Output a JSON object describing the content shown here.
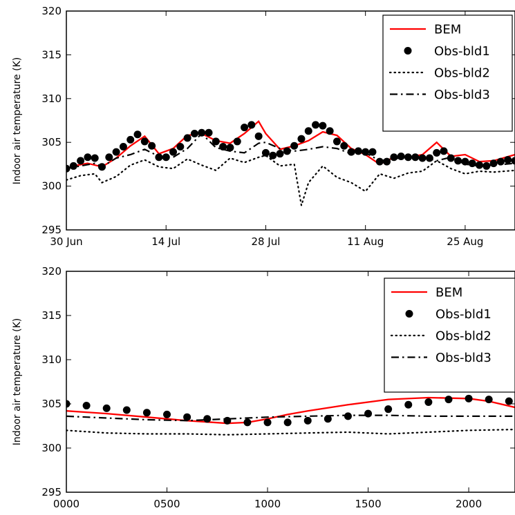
{
  "chart_data": [
    {
      "type": "line",
      "ylabel": "Indoor air temperature (K)",
      "xlabel": "",
      "ylim": [
        295,
        320
      ],
      "xlim": [
        "2012-06-30",
        "2012-09-01"
      ],
      "yticks": [
        "295",
        "300",
        "305",
        "310",
        "315",
        "320"
      ],
      "xtick_labels": [
        {
          "label": "30 Jun",
          "date": "2012-06-30"
        },
        {
          "label": "14 Jul",
          "date": "2012-07-14"
        },
        {
          "label": "28 Jul",
          "date": "2012-07-28"
        },
        {
          "label": "11 Aug",
          "date": "2012-08-11"
        },
        {
          "label": "25 Aug",
          "date": "2012-08-25"
        }
      ],
      "legend_position": "top-right",
      "series": [
        {
          "name": "BEM",
          "style": "solid",
          "color": "#ff0000",
          "x": [
            "2012-06-30",
            "2012-07-01",
            "2012-07-03",
            "2012-07-05",
            "2012-07-07",
            "2012-07-09",
            "2012-07-11",
            "2012-07-13",
            "2012-07-15",
            "2012-07-17",
            "2012-07-19",
            "2012-07-21",
            "2012-07-23",
            "2012-07-25",
            "2012-07-27",
            "2012-07-28",
            "2012-07-30",
            "2012-08-01",
            "2012-08-03",
            "2012-08-05",
            "2012-08-07",
            "2012-08-09",
            "2012-08-11",
            "2012-08-13",
            "2012-08-15",
            "2012-08-17",
            "2012-08-19",
            "2012-08-21",
            "2012-08-23",
            "2012-08-25",
            "2012-08-27",
            "2012-08-29",
            "2012-09-01"
          ],
          "y": [
            301.9,
            302.3,
            302.6,
            302.2,
            303.2,
            304.6,
            305.7,
            303.7,
            304.3,
            305.8,
            306.0,
            305.2,
            304.9,
            306.0,
            307.4,
            306.0,
            304.2,
            304.6,
            305.2,
            306.2,
            305.8,
            304.3,
            303.6,
            302.5,
            303.3,
            303.3,
            303.6,
            305.0,
            303.4,
            303.6,
            302.8,
            302.9,
            303.6
          ]
        },
        {
          "name": "Obs-bld1",
          "style": "markers",
          "color": "#000000",
          "x": [
            "2012-06-30",
            "2012-07-01",
            "2012-07-02",
            "2012-07-03",
            "2012-07-04",
            "2012-07-05",
            "2012-07-06",
            "2012-07-07",
            "2012-07-08",
            "2012-07-09",
            "2012-07-10",
            "2012-07-11",
            "2012-07-12",
            "2012-07-13",
            "2012-07-14",
            "2012-07-15",
            "2012-07-16",
            "2012-07-17",
            "2012-07-18",
            "2012-07-19",
            "2012-07-20",
            "2012-07-21",
            "2012-07-22",
            "2012-07-23",
            "2012-07-24",
            "2012-07-25",
            "2012-07-26",
            "2012-07-27",
            "2012-07-28",
            "2012-07-29",
            "2012-07-30",
            "2012-07-31",
            "2012-08-01",
            "2012-08-02",
            "2012-08-03",
            "2012-08-04",
            "2012-08-05",
            "2012-08-06",
            "2012-08-07",
            "2012-08-08",
            "2012-08-09",
            "2012-08-10",
            "2012-08-11",
            "2012-08-12",
            "2012-08-13",
            "2012-08-14",
            "2012-08-15",
            "2012-08-16",
            "2012-08-17",
            "2012-08-18",
            "2012-08-19",
            "2012-08-20",
            "2012-08-21",
            "2012-08-22",
            "2012-08-23",
            "2012-08-24",
            "2012-08-25",
            "2012-08-26",
            "2012-08-27",
            "2012-08-28",
            "2012-08-29",
            "2012-08-30",
            "2012-08-31",
            "2012-09-01"
          ],
          "y": [
            302.0,
            302.3,
            302.9,
            303.3,
            303.2,
            302.2,
            303.3,
            303.9,
            304.5,
            305.3,
            305.9,
            305.1,
            304.6,
            303.3,
            303.3,
            303.9,
            304.5,
            305.5,
            306.0,
            306.1,
            306.1,
            305.1,
            304.5,
            304.4,
            305.1,
            306.7,
            307.0,
            305.7,
            303.8,
            303.5,
            303.7,
            304.0,
            304.6,
            305.4,
            306.3,
            307.0,
            306.9,
            306.3,
            305.1,
            304.6,
            303.9,
            304.0,
            303.9,
            303.9,
            302.8,
            302.8,
            303.3,
            303.4,
            303.3,
            303.3,
            303.2,
            303.2,
            303.8,
            304.0,
            303.2,
            302.9,
            302.8,
            302.6,
            302.4,
            302.3,
            302.6,
            302.8,
            303.0,
            302.9
          ]
        },
        {
          "name": "Obs-bld2",
          "style": "dotted",
          "color": "#000000",
          "x": [
            "2012-06-30",
            "2012-07-02",
            "2012-07-04",
            "2012-07-05",
            "2012-07-07",
            "2012-07-09",
            "2012-07-11",
            "2012-07-13",
            "2012-07-15",
            "2012-07-17",
            "2012-07-19",
            "2012-07-21",
            "2012-07-23",
            "2012-07-25",
            "2012-07-27",
            "2012-07-28",
            "2012-07-30",
            "2012-08-01",
            "2012-08-02",
            "2012-08-03",
            "2012-08-05",
            "2012-08-07",
            "2012-08-09",
            "2012-08-11",
            "2012-08-13",
            "2012-08-15",
            "2012-08-17",
            "2012-08-19",
            "2012-08-21",
            "2012-08-23",
            "2012-08-25",
            "2012-08-27",
            "2012-08-29",
            "2012-09-01"
          ],
          "y": [
            300.7,
            301.2,
            301.4,
            300.4,
            301.1,
            302.4,
            303.0,
            302.2,
            302.0,
            303.1,
            302.4,
            301.8,
            303.2,
            302.7,
            303.3,
            303.5,
            302.3,
            302.5,
            297.8,
            300.4,
            302.3,
            301.0,
            300.4,
            299.4,
            301.4,
            300.9,
            301.5,
            301.7,
            302.9,
            302.0,
            301.4,
            301.7,
            301.6,
            301.8
          ]
        },
        {
          "name": "Obs-bld3",
          "style": "dashdot",
          "color": "#000000",
          "x": [
            "2012-06-30",
            "2012-07-02",
            "2012-07-04",
            "2012-07-05",
            "2012-07-07",
            "2012-07-09",
            "2012-07-11",
            "2012-07-13",
            "2012-07-15",
            "2012-07-17",
            "2012-07-19",
            "2012-07-21",
            "2012-07-23",
            "2012-07-25",
            "2012-07-27",
            "2012-07-28",
            "2012-07-30",
            "2012-08-01",
            "2012-08-03",
            "2012-08-05",
            "2012-08-07",
            "2012-08-09",
            "2012-08-11",
            "2012-08-13",
            "2012-08-15",
            "2012-08-17",
            "2012-08-19",
            "2012-08-21",
            "2012-08-23",
            "2012-08-25",
            "2012-08-27",
            "2012-08-29",
            "2012-09-01"
          ],
          "y": [
            302.0,
            302.3,
            302.6,
            302.2,
            303.2,
            303.6,
            304.2,
            303.4,
            303.3,
            304.3,
            306.0,
            304.4,
            304.0,
            303.8,
            304.9,
            305.0,
            304.3,
            304.0,
            304.2,
            304.5,
            304.3,
            303.7,
            303.8,
            302.9,
            303.1,
            303.4,
            303.3,
            302.9,
            303.3,
            302.5,
            302.3,
            302.4,
            302.6
          ]
        }
      ]
    },
    {
      "type": "line",
      "ylabel": "Indoor air temperature (K)",
      "xlabel": "",
      "ylim": [
        295,
        320
      ],
      "xlim": [
        0,
        2230
      ],
      "yticks": [
        "295",
        "300",
        "305",
        "310",
        "315",
        "320"
      ],
      "xtick_labels": [
        {
          "label": "0000",
          "value": 0
        },
        {
          "label": "0500",
          "value": 500
        },
        {
          "label": "1000",
          "value": 1000
        },
        {
          "label": "1500",
          "value": 1500
        },
        {
          "label": "2000",
          "value": 2000
        }
      ],
      "legend_position": "top-right",
      "series": [
        {
          "name": "BEM",
          "style": "solid",
          "color": "#ff0000",
          "x": [
            0,
            200,
            400,
            600,
            800,
            900,
            1000,
            1100,
            1200,
            1400,
            1600,
            1800,
            2000,
            2100,
            2230
          ],
          "y": [
            304.2,
            303.9,
            303.5,
            303.1,
            302.8,
            302.9,
            303.3,
            303.8,
            304.2,
            304.9,
            305.5,
            305.7,
            305.6,
            305.3,
            304.6
          ]
        },
        {
          "name": "Obs-bld1",
          "style": "markers",
          "color": "#000000",
          "x": [
            0,
            100,
            200,
            300,
            400,
            500,
            600,
            700,
            800,
            900,
            1000,
            1100,
            1200,
            1300,
            1400,
            1500,
            1600,
            1700,
            1800,
            1900,
            2000,
            2100,
            2200
          ],
          "y": [
            305.0,
            304.8,
            304.5,
            304.3,
            304.0,
            303.8,
            303.5,
            303.3,
            303.1,
            302.9,
            302.9,
            302.9,
            303.1,
            303.3,
            303.6,
            303.9,
            304.4,
            304.9,
            305.2,
            305.5,
            305.6,
            305.5,
            305.3
          ]
        },
        {
          "name": "Obs-bld2",
          "style": "dotted",
          "color": "#000000",
          "x": [
            0,
            200,
            400,
            600,
            800,
            1000,
            1200,
            1400,
            1600,
            1800,
            2000,
            2230
          ],
          "y": [
            302.0,
            301.7,
            301.6,
            301.6,
            301.5,
            301.6,
            301.7,
            301.8,
            301.6,
            301.8,
            302.0,
            302.1
          ]
        },
        {
          "name": "Obs-bld3",
          "style": "dashdot",
          "color": "#000000",
          "x": [
            0,
            200,
            400,
            600,
            800,
            1000,
            1200,
            1400,
            1600,
            1800,
            2000,
            2230
          ],
          "y": [
            303.6,
            303.4,
            303.2,
            303.1,
            303.3,
            303.5,
            303.6,
            303.7,
            303.7,
            303.6,
            303.6,
            303.6
          ]
        }
      ]
    }
  ]
}
